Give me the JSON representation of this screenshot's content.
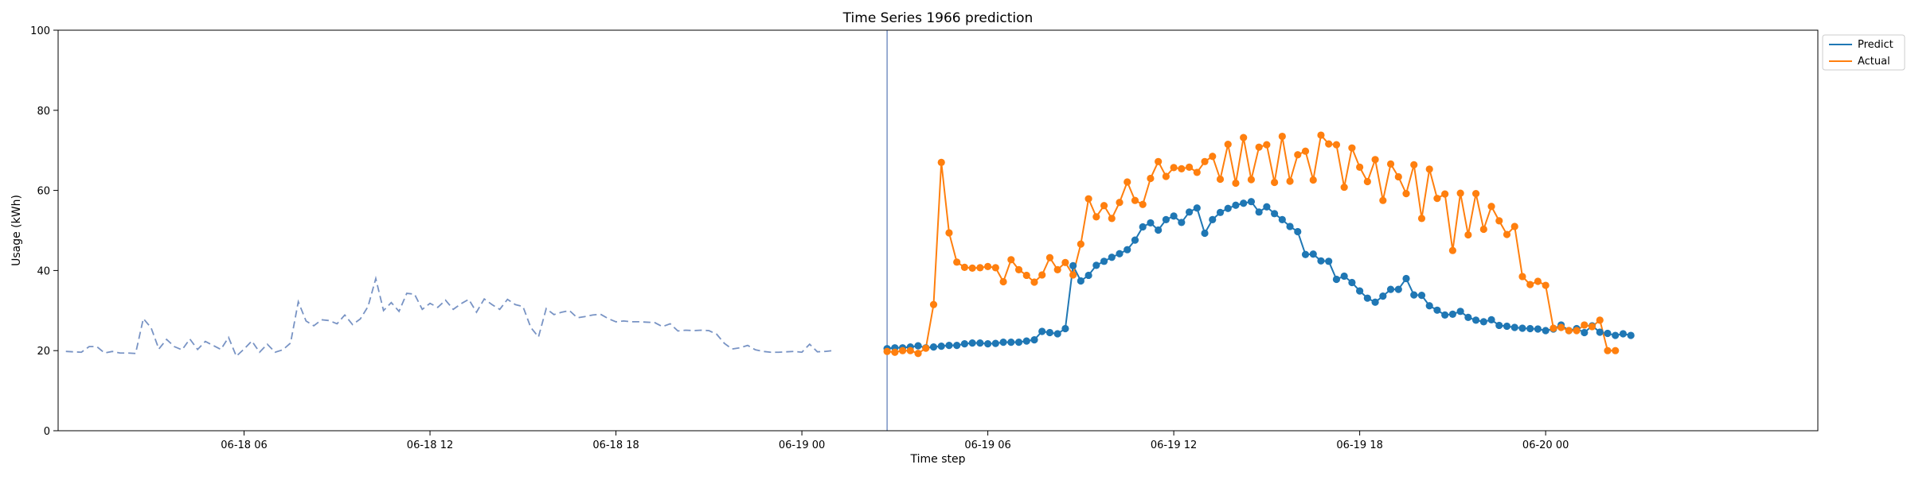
{
  "chart_data": {
    "type": "line",
    "title": "Time Series 1966 prediction",
    "xlabel": "Time step",
    "ylabel": "Usage (kWh)",
    "ylim": [
      0,
      100
    ],
    "yticks": [
      0,
      20,
      40,
      60,
      80,
      100
    ],
    "xlim": [
      "2024-06-18 00:00",
      "2024-06-20 08:47"
    ],
    "xticks": [
      {
        "t": "2024-06-18 06:00",
        "label": "06-18 06"
      },
      {
        "t": "2024-06-18 12:00",
        "label": "06-18 12"
      },
      {
        "t": "2024-06-18 18:00",
        "label": "06-18 18"
      },
      {
        "t": "2024-06-19 00:00",
        "label": "06-19 00"
      },
      {
        "t": "2024-06-19 06:00",
        "label": "06-19 06"
      },
      {
        "t": "2024-06-19 12:00",
        "label": "06-19 12"
      },
      {
        "t": "2024-06-19 18:00",
        "label": "06-19 18"
      },
      {
        "t": "2024-06-20 00:00",
        "label": "06-20 00"
      }
    ],
    "grid": false,
    "legend_placement": "upper-right-outside",
    "interval_minutes": 15,
    "vline_time": "2024-06-19 02:45",
    "history": {
      "start": "2024-06-18 00:15",
      "color": "#7893c4",
      "values": [
        19.8,
        19.7,
        19.6,
        21.0,
        21.0,
        19.4,
        19.8,
        19.4,
        19.4,
        19.3,
        28.0,
        25.7,
        20.4,
        22.8,
        21.0,
        20.2,
        22.9,
        20.3,
        22.3,
        21.3,
        20.3,
        23.3,
        18.6,
        20.4,
        22.4,
        19.6,
        21.6,
        19.6,
        20.2,
        21.9,
        32.2,
        27.4,
        26.2,
        27.7,
        27.5,
        26.7,
        28.9,
        26.5,
        27.9,
        31.0,
        38.0,
        30.0,
        32.0,
        29.8,
        34.3,
        34.1,
        30.3,
        31.8,
        30.8,
        32.6,
        30.3,
        31.7,
        32.8,
        29.6,
        32.9,
        31.5,
        30.3,
        32.8,
        31.5,
        31.0,
        25.8,
        23.4,
        30.5,
        29.0,
        29.6,
        30.0,
        28.2,
        28.5,
        28.9,
        29.1,
        28.0,
        27.2,
        27.4,
        27.2,
        27.2,
        27.1,
        27.0,
        26.0,
        26.7,
        24.9,
        25.1,
        25.0,
        25.1,
        25.0,
        24.1,
        21.8,
        20.4,
        20.7,
        21.3,
        20.2,
        19.8,
        19.6,
        19.6,
        19.7,
        19.8,
        19.6,
        21.6,
        19.7,
        19.8,
        20.0
      ]
    },
    "forecast_start": "2024-06-19 02:45",
    "series": [
      {
        "name": "Predict",
        "color": "#1f77b4",
        "values": [
          20.5,
          20.7,
          20.7,
          20.9,
          21.2,
          20.7,
          20.9,
          21.1,
          21.3,
          21.3,
          21.7,
          21.9,
          21.9,
          21.7,
          21.8,
          22.1,
          22.1,
          22.1,
          22.4,
          22.7,
          24.8,
          24.5,
          24.2,
          25.5,
          41.2,
          37.4,
          38.8,
          41.3,
          42.3,
          43.3,
          44.2,
          45.2,
          47.6,
          50.9,
          51.9,
          50.1,
          52.7,
          53.6,
          52.0,
          54.6,
          55.6,
          49.3,
          52.7,
          54.5,
          55.5,
          56.3,
          56.8,
          57.2,
          54.6,
          55.9,
          54.2,
          52.7,
          51.0,
          49.7,
          44.0,
          44.1,
          42.4,
          42.3,
          37.8,
          38.6,
          37.0,
          34.9,
          33.1,
          32.1,
          33.6,
          35.3,
          35.3,
          38.0,
          33.9,
          33.8,
          31.2,
          30.1,
          28.9,
          29.1,
          29.8,
          28.3,
          27.6,
          27.2,
          27.7,
          26.3,
          26.1,
          25.8,
          25.6,
          25.5,
          25.4,
          25.0,
          25.4,
          26.4,
          25.0,
          25.5,
          24.5,
          26.2,
          24.6,
          24.3,
          23.8,
          24.2,
          23.8
        ]
      },
      {
        "name": "Actual",
        "color": "#ff7f0e",
        "values": [
          19.8,
          19.6,
          20.0,
          20.0,
          19.3,
          20.6,
          31.5,
          67.0,
          49.4,
          42.1,
          40.8,
          40.6,
          40.7,
          41.0,
          40.7,
          37.2,
          42.7,
          40.2,
          38.8,
          37.1,
          38.9,
          43.2,
          40.2,
          42.0,
          38.9,
          46.6,
          57.9,
          53.4,
          56.2,
          53.0,
          57.0,
          62.1,
          57.5,
          56.5,
          63.0,
          67.2,
          63.5,
          65.7,
          65.4,
          65.8,
          64.5,
          67.2,
          68.5,
          62.8,
          71.5,
          61.8,
          73.2,
          62.7,
          70.8,
          71.4,
          62.0,
          73.5,
          62.3,
          68.9,
          69.8,
          62.6,
          73.8,
          71.6,
          71.4,
          60.8,
          70.6,
          65.8,
          62.2,
          67.7,
          57.5,
          66.6,
          63.4,
          59.2,
          66.4,
          53.0,
          65.3,
          58.0,
          59.1,
          45.0,
          59.3,
          48.9,
          59.2,
          50.3,
          56.0,
          52.4,
          49.0,
          51.0,
          38.5,
          36.5,
          37.3,
          36.3,
          25.6,
          25.8,
          25.0,
          25.0,
          26.4,
          26.0,
          27.6,
          20.0,
          20.0
        ]
      }
    ]
  }
}
